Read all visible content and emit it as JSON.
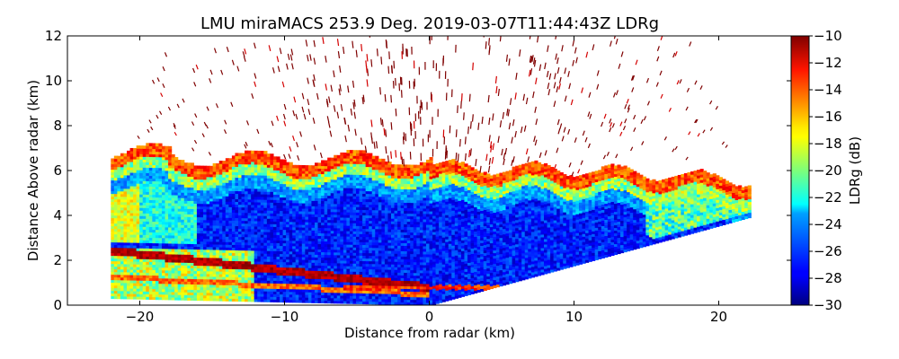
{
  "chart_data": {
    "type": "heatmap",
    "title": "LMU miraMACS 253.9 Deg. 2019-03-07T11:44:43Z  LDRg",
    "xlabel": "Distance from radar (km)",
    "ylabel": "Distance Above radar  (km)",
    "xlim": [
      -25,
      25
    ],
    "ylim": [
      0,
      12
    ],
    "xticks": [
      -20,
      -10,
      0,
      10,
      20
    ],
    "xtick_labels": [
      "−20",
      "−10",
      "0",
      "10",
      "20"
    ],
    "yticks": [
      0,
      2,
      4,
      6,
      8,
      10,
      12
    ],
    "ytick_labels": [
      "0",
      "2",
      "4",
      "6",
      "8",
      "10",
      "12"
    ],
    "colorbar": {
      "label": "LDRg (dB)",
      "min": -30,
      "max": -10,
      "colormap": "jet",
      "ticks": [
        -30,
        -28,
        -26,
        -24,
        -22,
        -20,
        -18,
        -16,
        -14,
        -12,
        -10
      ],
      "tick_labels": [
        "−30",
        "−28",
        "−26",
        "−24",
        "−22",
        "−20",
        "−18",
        "−16",
        "−14",
        "−12",
        "−10"
      ]
    },
    "scan": {
      "left_edge_x": -22,
      "right_edge_x": 22,
      "right_edge_top_y": 3.9,
      "cloud_top_y": 6.5,
      "cloud_base_y": 0.8,
      "noise_top_y": 12
    },
    "grid": false
  }
}
